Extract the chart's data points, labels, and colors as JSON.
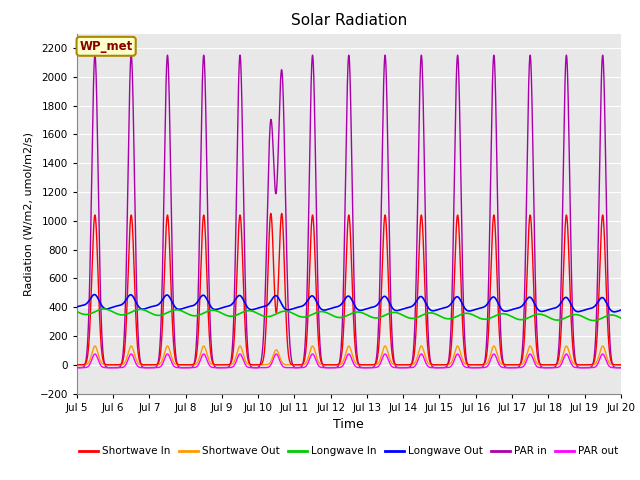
{
  "title": "Solar Radiation",
  "ylabel": "Radiation (W/m2, umol/m2/s)",
  "xlabel": "Time",
  "ylim": [
    -200,
    2300
  ],
  "yticks": [
    -200,
    0,
    200,
    400,
    600,
    800,
    1000,
    1200,
    1400,
    1600,
    1800,
    2000,
    2200
  ],
  "xtick_labels": [
    "Jul 5",
    "Jul 6",
    "Jul 7",
    "Jul 8",
    "Jul 9",
    "Jul 10",
    "Jul 11",
    "Jul 12",
    "Jul 13",
    "Jul 14",
    "Jul 15",
    "Jul 16",
    "Jul 17",
    "Jul 18",
    "Jul 19",
    "Jul 20"
  ],
  "bg_color": "#e8e8e8",
  "annotation_text": "WP_met",
  "annotation_bg": "#ffffcc",
  "annotation_border": "#aa8800",
  "series": {
    "shortwave_in": {
      "color": "#ff0000",
      "label": "Shortwave In"
    },
    "shortwave_out": {
      "color": "#ff9900",
      "label": "Shortwave Out"
    },
    "longwave_in": {
      "color": "#00cc00",
      "label": "Longwave In"
    },
    "longwave_out": {
      "color": "#0000ff",
      "label": "Longwave Out"
    },
    "par_in": {
      "color": "#aa00aa",
      "label": "PAR in"
    },
    "par_out": {
      "color": "#ff00ff",
      "label": "PAR out"
    }
  }
}
